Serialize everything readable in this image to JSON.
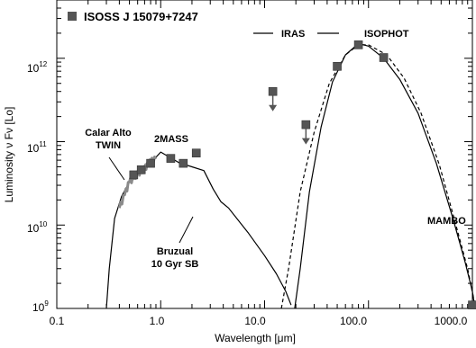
{
  "chart_data": {
    "type": "scatter",
    "title": "",
    "xlabel": "Wavelength [μm]",
    "ylabel": "Luminosity ν Fν [Lo]",
    "xscale": "log",
    "yscale": "log",
    "xlim": [
      0.1,
      1000
    ],
    "ylim": [
      1000000000.0,
      5000000000000.0
    ],
    "grid": false,
    "legend_position": "top-left",
    "x_tick_labels": [
      "0.1",
      "1.0",
      "10.0",
      "100.0",
      "1000.0"
    ],
    "y_tick_labels": [
      {
        "base": "10",
        "exp": "9"
      },
      {
        "base": "10",
        "exp": "10"
      },
      {
        "base": "10",
        "exp": "11"
      },
      {
        "base": "10",
        "exp": "12"
      }
    ],
    "series": [
      {
        "name": "ISOSS J 15079+7247",
        "marker": "square",
        "color": "#555555",
        "points": [
          {
            "x": 0.55,
            "y": 40000000000.0
          },
          {
            "x": 0.65,
            "y": 46000000000.0
          },
          {
            "x": 0.8,
            "y": 55000000000.0
          },
          {
            "x": 1.25,
            "y": 63000000000.0
          },
          {
            "x": 1.65,
            "y": 55000000000.0
          },
          {
            "x": 2.2,
            "y": 73000000000.0
          },
          {
            "x": 50,
            "y": 800000000000.0
          },
          {
            "x": 80,
            "y": 1450000000000.0
          },
          {
            "x": 140,
            "y": 1020000000000.0
          },
          {
            "x": 1000,
            "y": 1100000000.0
          }
        ],
        "upper_limits": [
          {
            "x": 12,
            "y": 400000000000.0
          },
          {
            "x": 25,
            "y": 160000000000.0
          }
        ]
      }
    ],
    "curves": [
      {
        "name": "Bruzual 10 Gyr SB",
        "style": "solid",
        "points": [
          [
            0.3,
            1000000000.0
          ],
          [
            0.32,
            3000000000.0
          ],
          [
            0.36,
            12000000000.0
          ],
          [
            0.42,
            22000000000.0
          ],
          [
            0.5,
            33000000000.0
          ],
          [
            0.6,
            42000000000.0
          ],
          [
            0.7,
            50000000000.0
          ],
          [
            0.8,
            57000000000.0
          ],
          [
            0.9,
            65000000000.0
          ],
          [
            1.0,
            75000000000.0
          ],
          [
            1.1,
            70000000000.0
          ],
          [
            1.25,
            64000000000.0
          ],
          [
            1.5,
            56000000000.0
          ],
          [
            2.0,
            50000000000.0
          ],
          [
            2.6,
            45000000000.0
          ],
          [
            3.2,
            27000000000.0
          ],
          [
            3.8,
            19000000000.0
          ],
          [
            4.5,
            16000000000.0
          ],
          [
            7,
            8000000000.0
          ],
          [
            10,
            4300000000.0
          ],
          [
            13,
            2600000000.0
          ],
          [
            16,
            1600000000.0
          ],
          [
            18,
            1100000000.0
          ]
        ]
      },
      {
        "name": "Calar Alto TWIN",
        "style": "thick-gray",
        "points": [
          [
            0.4,
            16000000000.0
          ],
          [
            0.45,
            23000000000.0
          ],
          [
            0.5,
            33000000000.0
          ],
          [
            0.55,
            36000000000.0
          ],
          [
            0.6,
            42000000000.0
          ],
          [
            0.65,
            43000000000.0
          ],
          [
            0.7,
            48000000000.0
          ],
          [
            0.75,
            52000000000.0
          ],
          [
            0.8,
            58000000000.0
          ],
          [
            0.9,
            62000000000.0
          ]
        ]
      },
      {
        "name": "IRAS",
        "style": "solid",
        "points": [
          [
            19.5,
            1000000000.0
          ],
          [
            22,
            3000000000.0
          ],
          [
            27,
            25000000000.0
          ],
          [
            35,
            150000000000.0
          ],
          [
            45,
            520000000000.0
          ],
          [
            60,
            1100000000000.0
          ],
          [
            80,
            1500000000000.0
          ],
          [
            100,
            1400000000000.0
          ],
          [
            140,
            1000000000000.0
          ],
          [
            200,
            560000000000.0
          ],
          [
            300,
            220000000000.0
          ],
          [
            450,
            55000000000.0
          ],
          [
            650,
            12000000000.0
          ],
          [
            850,
            3600000000.0
          ],
          [
            1000,
            1600000000.0
          ],
          [
            1060,
            1000000000.0
          ]
        ]
      },
      {
        "name": "ISOPHOT",
        "style": "dashed",
        "points": [
          [
            14.5,
            1000000000.0
          ],
          [
            17,
            3000000000.0
          ],
          [
            22,
            25000000000.0
          ],
          [
            30,
            130000000000.0
          ],
          [
            42,
            500000000000.0
          ],
          [
            60,
            1100000000000.0
          ],
          [
            80,
            1450000000000.0
          ],
          [
            100,
            1450000000000.0
          ],
          [
            150,
            1100000000000.0
          ],
          [
            220,
            580000000000.0
          ],
          [
            320,
            220000000000.0
          ],
          [
            480,
            53000000000.0
          ],
          [
            680,
            11000000000.0
          ],
          [
            900,
            3000000000.0
          ],
          [
            1030,
            1300000000.0
          ],
          [
            1060,
            1000000000.0
          ]
        ]
      }
    ],
    "annotations": [
      {
        "lines": [
          "Calar Alto",
          "TWIN"
        ]
      },
      {
        "lines": [
          "2MASS"
        ]
      },
      {
        "lines": [
          "Bruzual",
          "10 Gyr SB"
        ]
      },
      {
        "lines": [
          "IRAS"
        ]
      },
      {
        "lines": [
          "ISOPHOT"
        ]
      },
      {
        "lines": [
          "MAMBO"
        ]
      }
    ]
  },
  "legend": {
    "source_label": "ISOSS J 15079+7247"
  }
}
